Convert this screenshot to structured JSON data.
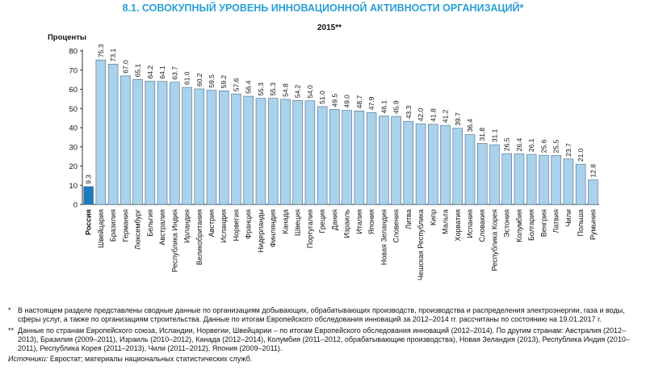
{
  "title": "8.1. СОВОКУПНЫЙ УРОВЕНЬ ИННОВАЦИОННОЙ АКТИВНОСТИ ОРГАНИЗАЦИЙ*",
  "colors": {
    "title": "#2aa0d2",
    "bar": "#a9d2ec",
    "bar_highlight": "#1d7bbd",
    "bar_stroke": "#4a6d85"
  },
  "chart_data": {
    "type": "bar",
    "subtitle": "2015**",
    "ylabel": "Проценты",
    "xlabel": "",
    "ylim": [
      0,
      80
    ],
    "yticks": [
      0,
      10,
      20,
      30,
      40,
      50,
      60,
      70,
      80
    ],
    "grid": false,
    "highlight_category": "Россия",
    "categories": [
      "Россия",
      "Швейцария",
      "Бразилия",
      "Германия",
      "Люксембург",
      "Бельгия",
      "Австралия",
      "Республика Индия",
      "Ирландия",
      "Великобритания",
      "Австрия",
      "Исландия",
      "Норвегия",
      "Франция",
      "Нидерланды",
      "Финляндия",
      "Канада",
      "Швеция",
      "Португалия",
      "Греция",
      "Дания",
      "Израиль",
      "Италия",
      "Япония",
      "Новая Зеландия",
      "Словения",
      "Литва",
      "Чешская Республика",
      "Кипр",
      "Мальта",
      "Хорватия",
      "Испания",
      "Словакия",
      "Республика Корея",
      "Эстония",
      "Колумбия",
      "Болгария",
      "Венгрия",
      "Латвия",
      "Чили",
      "Польша",
      "Румыния"
    ],
    "values": [
      9.3,
      75.3,
      73.1,
      67.0,
      65.1,
      64.2,
      64.1,
      63.7,
      61.0,
      60.2,
      59.5,
      59.2,
      57.6,
      56.4,
      55.3,
      55.3,
      54.8,
      54.2,
      54.0,
      51.0,
      49.5,
      49.0,
      48.7,
      47.9,
      46.1,
      45.9,
      43.3,
      42.0,
      41.8,
      41.2,
      39.7,
      36.4,
      31.8,
      31.1,
      26.5,
      26.4,
      26.1,
      25.6,
      25.5,
      23.7,
      21.0,
      12.8
    ]
  },
  "notes": [
    {
      "mark": "*",
      "text": "В настоящем разделе представлены сводные данные по организациям добывающих, обрабатывающих производств, производства и распределения электроэнергии, газа и воды, сферы услуг, а также по организациям строительства. Данные по итогам Европейского обследования инноваций за 2012–2014 гг. рассчитаны по состоянию на 19.01.2017 г."
    },
    {
      "mark": "**",
      "text": "Данные по странам Европейского союза, Исландии, Норвегии, Швейцарии – по итогам Европейского обследования инноваций (2012–2014). По другим странам: Австралия (2012–2013), Бразилия (2009–2011), Израиль (2010–2012), Канада (2012–2014), Колумбия (2011–2012, обрабатывающие производства), Новая Зеландия (2013), Республика Индия (2010–2011), Республика Корея (2011–2013), Чили (2011–2012), Япония (2009–2011)."
    }
  ],
  "sources": {
    "label": "Источники:",
    "text": " Евростат; материалы национальных статистических служб."
  }
}
